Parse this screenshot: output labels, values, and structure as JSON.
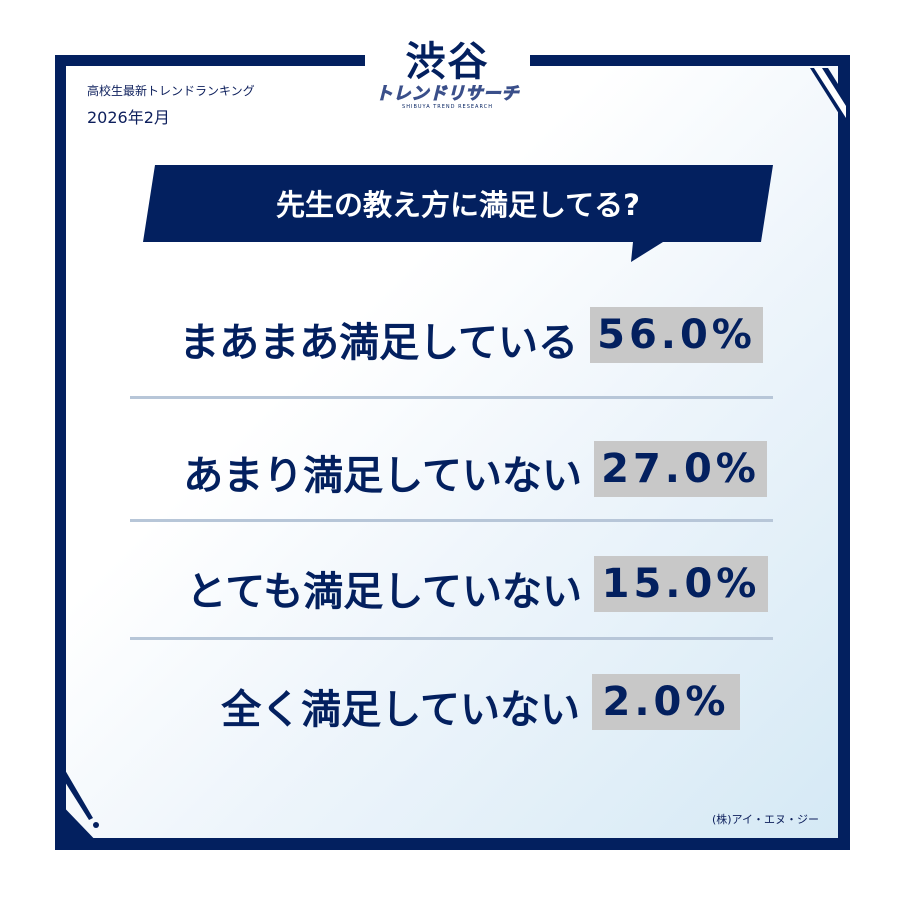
{
  "header": {
    "subtitle": "高校生最新トレンドランキング",
    "date": "2026年2月"
  },
  "logo": {
    "main": "渋谷",
    "sub": "トレンドリサーチ",
    "en": "SHIBUYA TREND RESEARCH"
  },
  "question": "先生の教え方に満足してる?",
  "results": [
    {
      "label": "まあまあ満足している",
      "value": "56.0%",
      "percent": 56.0
    },
    {
      "label": "あまり満足していない",
      "value": "27.0%",
      "percent": 27.0
    },
    {
      "label": "とても満足していない",
      "value": "15.0%",
      "percent": 15.0
    },
    {
      "label": "全く満足していない",
      "value": "2.0%",
      "percent": 2.0
    }
  ],
  "credit": "(株)アイ・エヌ・ジー",
  "colors": {
    "navy": "#03205f",
    "value_bg": "#c8c8c8",
    "separator": "#b7c6d8"
  }
}
